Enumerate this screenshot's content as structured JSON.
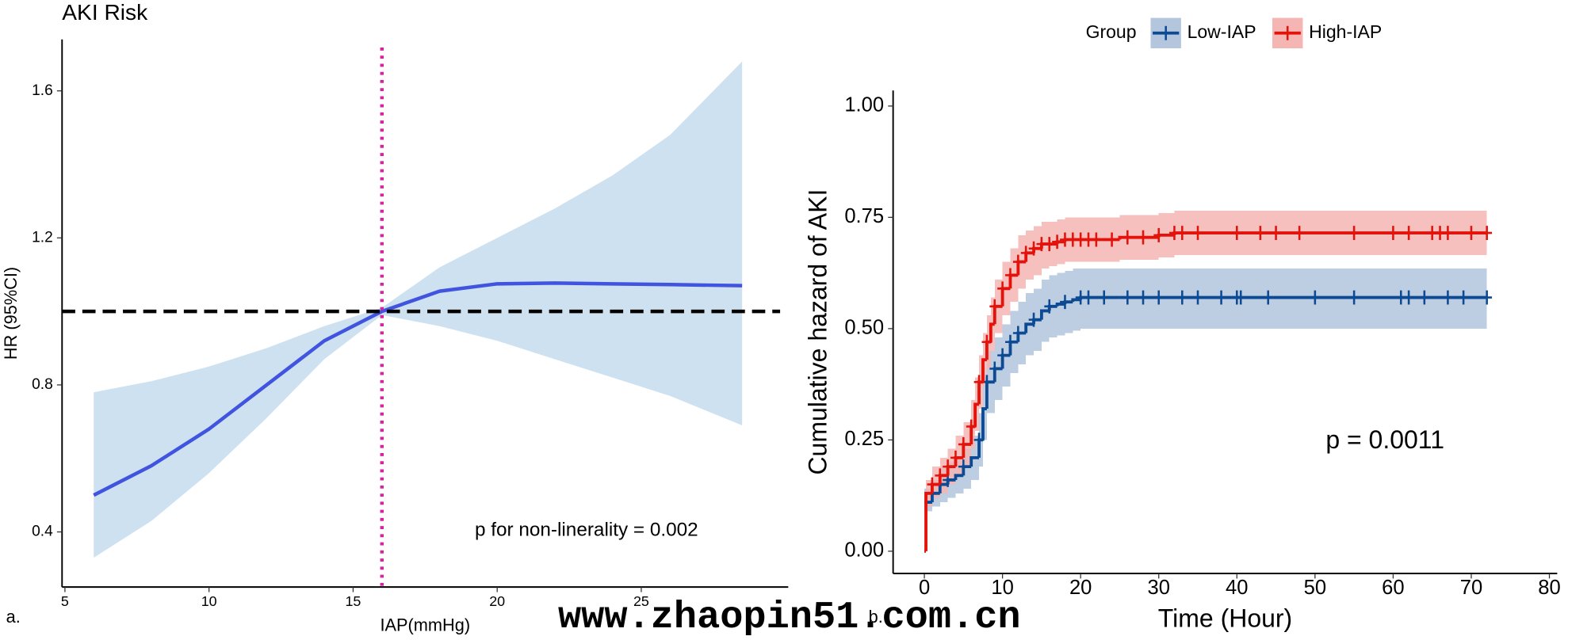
{
  "watermark": "www.zhaopin51.com.cn",
  "chart_data": [
    {
      "type": "line",
      "title": "AKI Risk",
      "xlabel": "IAP(mmHg)",
      "ylabel": "HR (95%CI)",
      "panel_label": "a.",
      "annotation": "p for non-linerality = 0.002",
      "xlim": [
        4.9,
        30.1
      ],
      "xticks": [
        5,
        10,
        15,
        20,
        25
      ],
      "ylim": [
        0.25,
        1.74
      ],
      "yticks": [
        0.4,
        0.8,
        1.2,
        1.6
      ],
      "hline": 1,
      "vline": 16,
      "color": "#4154e0",
      "band_color": "#cde1f0",
      "x": [
        6,
        8,
        10,
        12,
        14,
        16,
        18,
        20,
        22,
        24,
        26,
        28.5
      ],
      "values": [
        0.5,
        0.58,
        0.68,
        0.8,
        0.92,
        1.0,
        1.055,
        1.075,
        1.077,
        1.075,
        1.073,
        1.07
      ],
      "lower": [
        0.33,
        0.43,
        0.56,
        0.71,
        0.87,
        0.99,
        0.96,
        0.92,
        0.87,
        0.82,
        0.77,
        0.69
      ],
      "upper": [
        0.78,
        0.81,
        0.85,
        0.9,
        0.96,
        1.01,
        1.12,
        1.2,
        1.28,
        1.37,
        1.48,
        1.68
      ]
    },
    {
      "type": "step",
      "xlabel": "Time (Hour)",
      "ylabel": "Cumulative hazard of AKI",
      "panel_label": "b.",
      "annotation": "p = 0.0011",
      "legend_title": "Group",
      "xlim": [
        -4,
        81
      ],
      "xticks": [
        0,
        10,
        20,
        30,
        40,
        50,
        60,
        70,
        80
      ],
      "ylim": [
        -0.05,
        1.035
      ],
      "yticks": [
        {
          "value": 0,
          "label": "0.00"
        },
        {
          "value": 0.25,
          "label": "0.25"
        },
        {
          "value": 0.5,
          "label": "0.50"
        },
        {
          "value": 0.75,
          "label": "0.75"
        },
        {
          "value": 1,
          "label": "1.00"
        }
      ],
      "series": [
        {
          "name": "Low-IAP",
          "color": "#0d4a94",
          "band_color": "#b3c6dd",
          "x": [
            0,
            1,
            2,
            3,
            4,
            5,
            6,
            7,
            7.5,
            8,
            9,
            10,
            11,
            12,
            13,
            14,
            15,
            16,
            17,
            18,
            19,
            20,
            25,
            30,
            40,
            72
          ],
          "values": [
            0.11,
            0.13,
            0.15,
            0.16,
            0.17,
            0.19,
            0.21,
            0.25,
            0.32,
            0.38,
            0.41,
            0.44,
            0.47,
            0.49,
            0.51,
            0.52,
            0.54,
            0.55,
            0.555,
            0.56,
            0.565,
            0.57,
            0.57,
            0.57,
            0.57,
            0.57
          ],
          "lower": [
            0.09,
            0.1,
            0.11,
            0.12,
            0.13,
            0.14,
            0.16,
            0.19,
            0.25,
            0.31,
            0.34,
            0.37,
            0.4,
            0.42,
            0.44,
            0.45,
            0.47,
            0.48,
            0.485,
            0.49,
            0.495,
            0.5,
            0.5,
            0.5,
            0.5,
            0.5
          ],
          "upper": [
            0.14,
            0.16,
            0.19,
            0.2,
            0.21,
            0.23,
            0.26,
            0.31,
            0.39,
            0.45,
            0.48,
            0.51,
            0.54,
            0.56,
            0.58,
            0.59,
            0.61,
            0.62,
            0.625,
            0.63,
            0.635,
            0.635,
            0.635,
            0.635,
            0.635,
            0.635
          ],
          "censor": [
            1,
            3,
            5,
            7,
            8,
            9,
            10,
            11,
            12,
            14,
            16,
            18,
            20,
            21,
            23,
            26,
            28,
            30,
            33,
            35,
            38,
            40,
            40.5,
            44,
            50,
            55,
            61,
            62,
            64,
            67,
            69,
            72
          ]
        },
        {
          "name": "High-IAP",
          "color": "#e3120b",
          "band_color": "#f4b5b3",
          "x": [
            0,
            0.2,
            1,
            2,
            3,
            4,
            5,
            6,
            6.5,
            7,
            7.5,
            8,
            8.5,
            9,
            10,
            11,
            12,
            13,
            14,
            15,
            16,
            17,
            18,
            20,
            22,
            25,
            30,
            32,
            40,
            72
          ],
          "values": [
            0,
            0.13,
            0.15,
            0.17,
            0.19,
            0.21,
            0.24,
            0.28,
            0.33,
            0.38,
            0.43,
            0.47,
            0.51,
            0.55,
            0.59,
            0.62,
            0.65,
            0.67,
            0.68,
            0.69,
            0.69,
            0.695,
            0.7,
            0.7,
            0.7,
            0.705,
            0.71,
            0.715,
            0.715,
            0.715
          ],
          "lower": [
            0,
            0.1,
            0.12,
            0.13,
            0.15,
            0.17,
            0.19,
            0.23,
            0.27,
            0.32,
            0.37,
            0.41,
            0.45,
            0.49,
            0.53,
            0.56,
            0.59,
            0.61,
            0.62,
            0.635,
            0.64,
            0.645,
            0.65,
            0.65,
            0.65,
            0.655,
            0.66,
            0.665,
            0.665,
            0.665
          ],
          "upper": [
            0,
            0.16,
            0.19,
            0.21,
            0.23,
            0.26,
            0.29,
            0.34,
            0.39,
            0.44,
            0.49,
            0.53,
            0.57,
            0.61,
            0.65,
            0.68,
            0.71,
            0.72,
            0.73,
            0.74,
            0.74,
            0.745,
            0.75,
            0.75,
            0.75,
            0.755,
            0.76,
            0.765,
            0.765,
            0.765
          ],
          "censor": [
            1,
            2,
            3,
            4,
            5,
            6,
            7,
            8,
            9,
            10,
            11,
            12,
            13,
            14,
            15,
            16,
            17,
            18,
            19,
            20,
            21,
            22,
            24,
            26,
            28,
            30,
            32,
            33,
            35,
            40,
            43,
            45,
            48,
            55,
            60,
            62,
            65,
            66,
            67,
            70,
            72
          ]
        }
      ]
    }
  ]
}
